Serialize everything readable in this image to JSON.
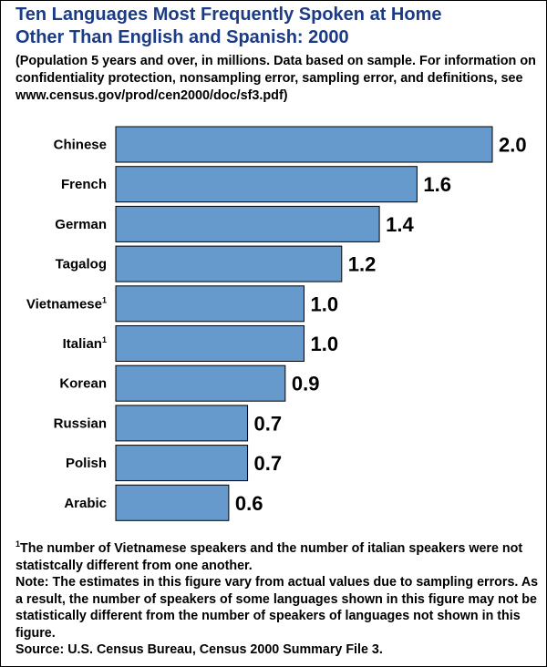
{
  "header": {
    "title_line1": "Ten Languages Most Frequently Spoken at Home",
    "title_line2": "Other Than English and Spanish: 2000",
    "subtitle": "(Population 5 years and over, in millions. Data based on sample. For information on confidentiality protection, nonsampling error, sampling error, and definitions, see www.census.gov/prod/cen2000/doc/sf3.pdf)"
  },
  "chart_data": {
    "type": "bar",
    "orientation": "horizontal",
    "title": "Ten Languages Most Frequently Spoken at Home Other Than English and Spanish: 2000",
    "xlabel": "",
    "ylabel": "",
    "unit": "millions",
    "xlim": [
      0,
      2.0
    ],
    "grid": false,
    "categories": [
      "Chinese",
      "French",
      "German",
      "Tagalog",
      "Vietnamese",
      "Italian",
      "Korean",
      "Russian",
      "Polish",
      "Arabic"
    ],
    "footnote_marks": [
      "",
      "",
      "",
      "",
      "1",
      "1",
      "",
      "",
      "",
      ""
    ],
    "values": [
      2.0,
      1.6,
      1.4,
      1.2,
      1.0,
      1.0,
      0.9,
      0.7,
      0.7,
      0.6
    ],
    "value_labels": [
      "2.0",
      "1.6",
      "1.4",
      "1.2",
      "1.0",
      "1.0",
      "0.9",
      "0.7",
      "0.7",
      "0.6"
    ],
    "bar_color": "#6699cc"
  },
  "notes": {
    "footnote_mark": "1",
    "footnote_text": "The number of Vietnamese speakers and the number of italian speakers were not statistcally different from one another.",
    "note": "Note: The estimates in this figure vary from actual values due to sampling errors. As a result, the number of speakers of some languages shown in this figure may not be statistically different from the number of speakers of languages not shown in this figure.",
    "source": "Source: U.S. Census Bureau, Census 2000 Summary File 3."
  },
  "colors": {
    "title": "#1c3b86",
    "bar": "#6699cc"
  }
}
